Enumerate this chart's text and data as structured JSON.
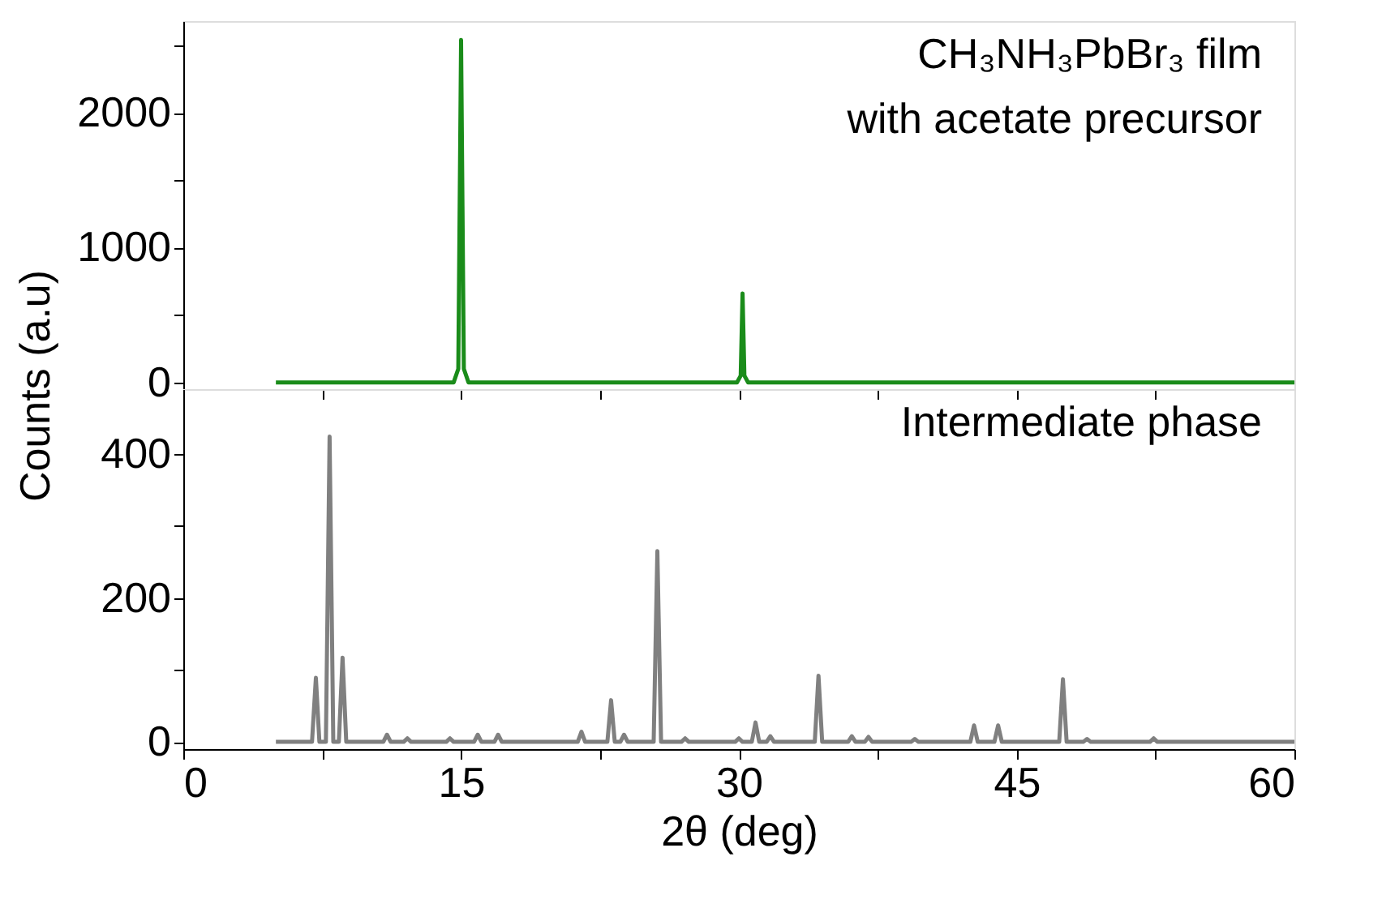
{
  "chart_data": [
    {
      "type": "line",
      "xlim": [
        0,
        60
      ],
      "xticks": [
        {
          "value": 0,
          "label": null
        },
        {
          "value": 7.5,
          "label": null
        },
        {
          "value": 15,
          "label": null
        },
        {
          "value": 22.5,
          "label": null
        },
        {
          "value": 30,
          "label": null
        },
        {
          "value": 37.5,
          "label": null
        },
        {
          "value": 45,
          "label": null
        },
        {
          "value": 52.5,
          "label": null
        },
        {
          "value": 60,
          "label": null
        }
      ],
      "ylim": [
        -50,
        2680
      ],
      "yticks": [
        0,
        {
          "value": 500,
          "label": null
        },
        1000,
        {
          "value": 1500,
          "label": null
        },
        2000,
        {
          "value": 2500,
          "label": null
        }
      ],
      "ylabel": "Counts (a.u)",
      "tick_labels": "y",
      "grid": false,
      "line_style": "solid",
      "marker": "none",
      "series": [
        {
          "name": "CH₃NH₃PbBr₃ film\nwith acetate precursor",
          "color": "#1a8c1a",
          "x": [
            5,
            14.6,
            14.85,
            15.0,
            15.15,
            15.4,
            29.9,
            30.1,
            30.2,
            30.3,
            30.5,
            60
          ],
          "values": [
            0,
            0,
            100,
            2540,
            100,
            0,
            0,
            50,
            660,
            50,
            0,
            0
          ]
        }
      ]
    },
    {
      "type": "line",
      "xlim": [
        0,
        60
      ],
      "xticks": [
        0,
        {
          "value": 7.5,
          "label": null
        },
        15,
        {
          "value": 22.5,
          "label": null
        },
        30,
        {
          "value": 37.5,
          "label": null
        },
        45,
        {
          "value": 52.5,
          "label": null
        },
        60
      ],
      "ylim": [
        -10,
        490
      ],
      "yticks": [
        0,
        {
          "value": 100,
          "label": null
        },
        200,
        {
          "value": 300,
          "label": null
        },
        400
      ],
      "xlabel": "2θ (deg)",
      "grid": false,
      "line_style": "solid",
      "marker": "none",
      "series": [
        {
          "name": "Intermediate phase",
          "color": "#808080",
          "x": [
            5,
            6.95,
            7.16,
            7.35,
            7.7,
            7.9,
            8.1,
            8.4,
            8.6,
            8.8,
            10.8,
            11.0,
            11.2,
            11.9,
            12.1,
            12.3,
            14.2,
            14.4,
            14.6,
            15.7,
            15.9,
            16.1,
            16.8,
            17.0,
            17.2,
            21.3,
            21.5,
            21.7,
            22.9,
            23.1,
            23.3,
            23.6,
            23.8,
            24.0,
            25.4,
            25.6,
            25.8,
            26.9,
            27.1,
            27.3,
            29.8,
            30.0,
            30.2,
            30.7,
            30.9,
            31.1,
            31.5,
            31.7,
            31.9,
            34.1,
            34.3,
            34.5,
            35.9,
            36.1,
            36.3,
            36.8,
            37.0,
            37.2,
            39.3,
            39.5,
            39.7,
            42.5,
            42.7,
            42.9,
            43.8,
            44.0,
            44.2,
            47.3,
            47.5,
            47.7,
            48.6,
            48.8,
            49.0,
            52.2,
            52.4,
            52.6,
            60
          ],
          "values": [
            0,
            0,
            89,
            0,
            0,
            424,
            0,
            0,
            117,
            0,
            0,
            10,
            0,
            0,
            5,
            0,
            0,
            5,
            0,
            0,
            10,
            0,
            0,
            10,
            0,
            0,
            14,
            0,
            0,
            58,
            0,
            0,
            10,
            0,
            0,
            265,
            0,
            0,
            5,
            0,
            0,
            5,
            0,
            0,
            27,
            0,
            0,
            8,
            0,
            0,
            92,
            0,
            0,
            8,
            0,
            0,
            7,
            0,
            0,
            4,
            0,
            0,
            23,
            0,
            0,
            23,
            0,
            0,
            87,
            0,
            0,
            4,
            0,
            0,
            5,
            0,
            0
          ]
        }
      ]
    }
  ]
}
